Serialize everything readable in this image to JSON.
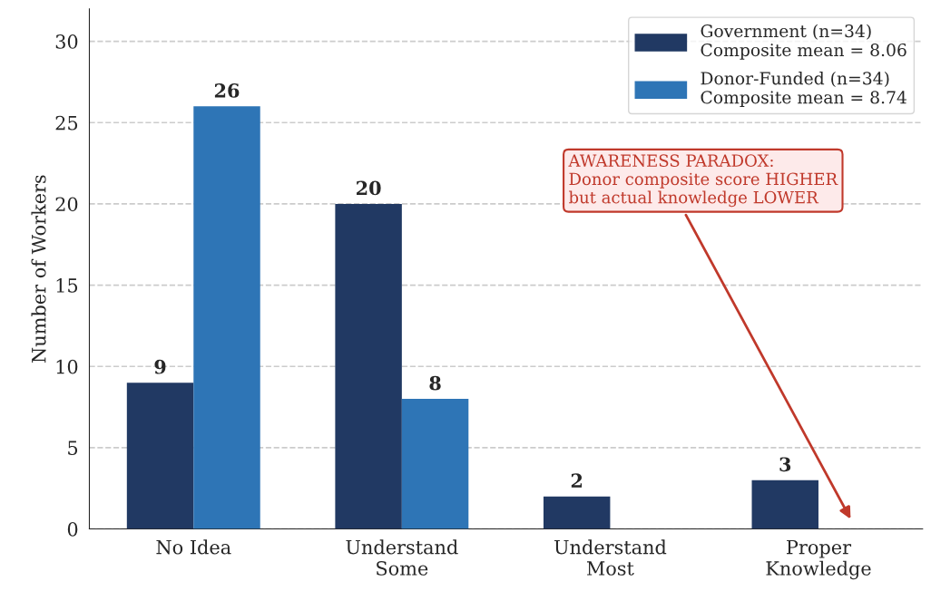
{
  "chart_data": {
    "type": "bar",
    "ylabel": "Number of Workers",
    "categories": [
      "No Idea",
      "Understand\nSome",
      "Understand\nMost",
      "Proper\nKnowledge"
    ],
    "series": [
      {
        "name": "Government (n=34)\nComposite mean = 8.06",
        "color": "#213963",
        "values": [
          9,
          20,
          2,
          3
        ],
        "value_labels": [
          "9",
          "20",
          "2",
          "3"
        ]
      },
      {
        "name": "Donor-Funded (n=34)\nComposite mean = 8.74",
        "color": "#2e75b6",
        "values": [
          26,
          8,
          null,
          null
        ],
        "value_labels": [
          "26",
          "8",
          null,
          null
        ]
      }
    ],
    "ylim": [
      0,
      32
    ],
    "yticks": [
      0,
      5,
      10,
      15,
      20,
      25,
      30
    ],
    "grid": "y",
    "legend": "top right",
    "annotations": [
      "AWARENESS PARADOX:\nDonor composite score HIGHER\nbut actual knowledge LOWER"
    ]
  }
}
